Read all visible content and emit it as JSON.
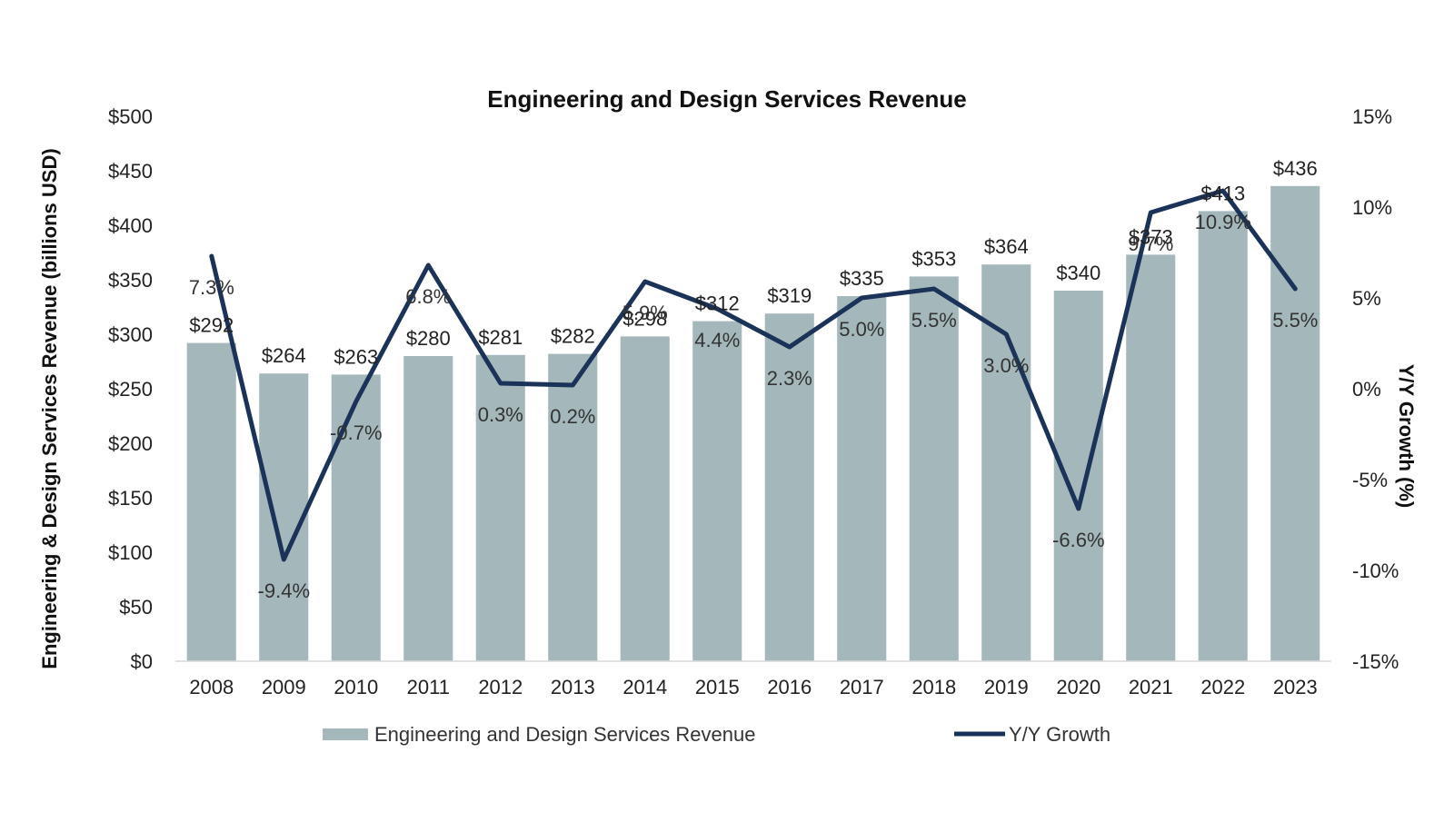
{
  "chart_data": {
    "type": "bar",
    "title": "Engineering and Design Services Revenue",
    "categories": [
      "2008",
      "2009",
      "2010",
      "2011",
      "2012",
      "2013",
      "2014",
      "2015",
      "2016",
      "2017",
      "2018",
      "2019",
      "2020",
      "2021",
      "2022",
      "2023"
    ],
    "series": [
      {
        "name": "Engineering and Design Services Revenue",
        "type": "bar",
        "axis": "left",
        "values": [
          292,
          264,
          263,
          280,
          281,
          282,
          298,
          312,
          319,
          335,
          353,
          364,
          340,
          373,
          413,
          436
        ],
        "labels": [
          "$292",
          "$264",
          "$263",
          "$280",
          "$281",
          "$282",
          "$298",
          "$312",
          "$319",
          "$335",
          "$353",
          "$364",
          "$340",
          "$373",
          "$413",
          "$436"
        ]
      },
      {
        "name": "Y/Y Growth",
        "type": "line",
        "axis": "right",
        "values": [
          7.3,
          -9.4,
          -0.7,
          6.8,
          0.3,
          0.2,
          5.9,
          4.4,
          2.3,
          5.0,
          5.5,
          3.0,
          -6.6,
          9.7,
          10.9,
          5.5
        ],
        "labels": [
          "7.3%",
          "-9.4%",
          "-0.7%",
          "6.8%",
          "0.3%",
          "0.2%",
          "5.9%",
          "4.4%",
          "2.3%",
          "5.0%",
          "5.5%",
          "3.0%",
          "-6.6%",
          "9.7%",
          "10.9%",
          "5.5%"
        ]
      }
    ],
    "ylabel": "Engineering & Design Services Revenue (billions USD)",
    "y2label": "Y/Y Growth (%)",
    "ylim": [
      0,
      500
    ],
    "y2lim": [
      -15,
      15
    ],
    "yticks": [
      "$0",
      "$50",
      "$100",
      "$150",
      "$200",
      "$250",
      "$300",
      "$350",
      "$400",
      "$450",
      "$500"
    ],
    "y2ticks": [
      "-15%",
      "-10%",
      "-5%",
      "0%",
      "5%",
      "10%",
      "15%"
    ],
    "grid": false,
    "legend_position": "bottom",
    "colors": {
      "bar": "#a4b8bc",
      "line": "#1b3358"
    }
  }
}
